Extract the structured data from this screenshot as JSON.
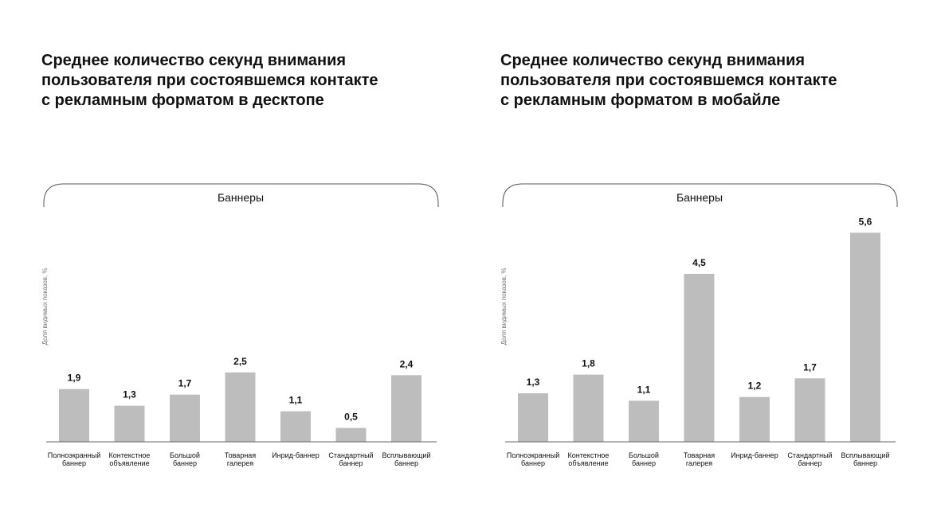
{
  "chart_data": [
    {
      "type": "bar",
      "title": [
        "Среднее количество секунд внимания",
        "пользователя при состоявшемся контакте",
        "с рекламным форматом в десктопе"
      ],
      "group_label": "Баннеры",
      "y_label": "Доля видимых показов, %",
      "categories": [
        [
          "Полноэкранный",
          "баннер"
        ],
        [
          "Контекстное",
          "объявление"
        ],
        [
          "Большой",
          "баннер"
        ],
        [
          "Товарная",
          "галерея"
        ],
        [
          "Инрид-баннер"
        ],
        [
          "Стандартный",
          "баннер"
        ],
        [
          "Всплывающий",
          "баннер"
        ]
      ],
      "values": [
        1.9,
        1.3,
        1.7,
        2.5,
        1.1,
        0.5,
        2.4
      ],
      "value_labels": [
        "1,9",
        "1,3",
        "1,7",
        "2,5",
        "1,1",
        "0,5",
        "2,4"
      ],
      "color": "#bdbdbd",
      "ylim": [
        0,
        7.8
      ]
    },
    {
      "type": "bar",
      "title": [
        "Среднее количество секунд внимания",
        "пользователя при состоявшемся контакте",
        "с рекламным форматом в мобайле"
      ],
      "group_label": "Баннеры",
      "y_label": "Доля видимых показов, %",
      "categories": [
        [
          "Полноэкранный",
          "баннер"
        ],
        [
          "Контекстное",
          "объявление"
        ],
        [
          "Большой",
          "баннер"
        ],
        [
          "Товарная",
          "галерея"
        ],
        [
          "Инрид-баннер"
        ],
        [
          "Стандартный",
          "баннер"
        ],
        [
          "Всплывающий",
          "баннер"
        ]
      ],
      "values": [
        1.3,
        1.8,
        1.1,
        4.5,
        1.2,
        1.7,
        5.6
      ],
      "value_labels": [
        "1,3",
        "1,8",
        "1,1",
        "4,5",
        "1,2",
        "1,7",
        "5,6"
      ],
      "color": "#bdbdbd",
      "ylim": [
        0,
        5.8
      ]
    }
  ]
}
